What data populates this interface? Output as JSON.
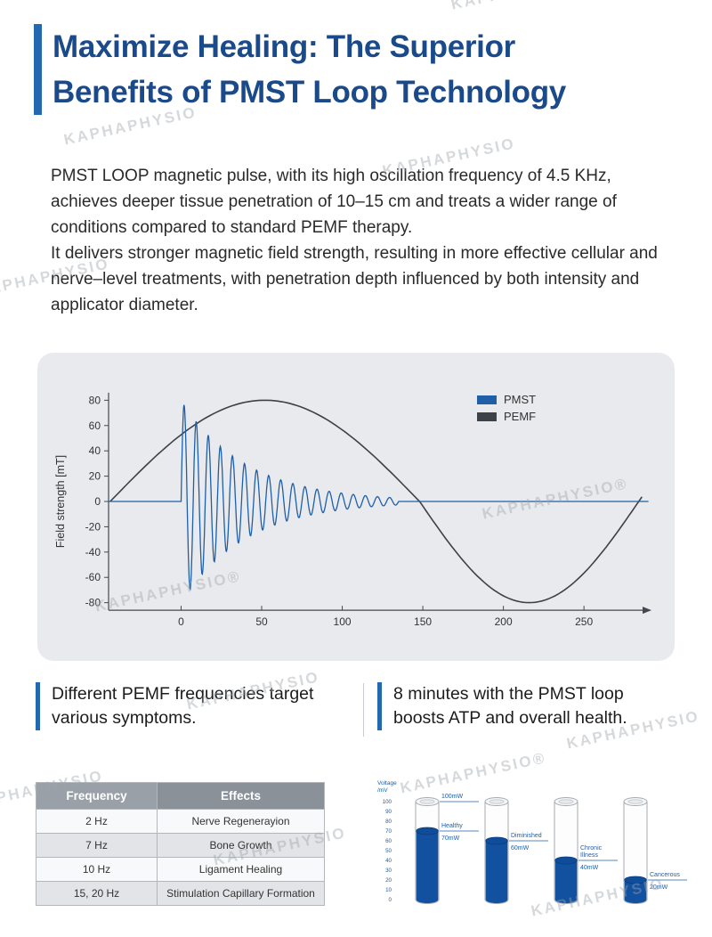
{
  "watermark": {
    "text": "KAPHAPHYSIO",
    "registered": "KAPHAPHYSIO®"
  },
  "header": {
    "title_line1": "Maximize Healing: The Superior",
    "title_line2": "Benefits of PMST Loop Technology"
  },
  "intro": {
    "p1": "PMST LOOP magnetic pulse, with its high oscillation frequency of 4.5 KHz, achieves deeper tissue penetration of 10–15 cm and treats a wider range of conditions compared to standard PEMF therapy.",
    "p2": "It delivers stronger magnetic field strength, resulting in more effective cellular and nerve–level treatments, with penetration depth influenced by both intensity and applicator diameter."
  },
  "chart_data": [
    {
      "type": "line",
      "title": "",
      "ylabel": "Field strength [mT]",
      "xlabel": "",
      "ylim": [
        -80,
        80
      ],
      "yticks": [
        80,
        60,
        40,
        20,
        0,
        -20,
        -40,
        -60,
        -80
      ],
      "xticks": [
        0,
        50,
        100,
        150,
        200,
        250
      ],
      "xlim": [
        -45,
        293
      ],
      "grid": false,
      "legend_position": "top-right",
      "series": [
        {
          "name": "PMST",
          "color": "#1e5fa8",
          "shape": "damped_oscillation",
          "amplitude": 80,
          "decay_tau": 40,
          "period": 7.5,
          "oscillation_range": [
            0,
            135
          ],
          "baseline": 0
        },
        {
          "name": "PEMF",
          "color": "#3d4248",
          "shape": "sine",
          "amplitude": 80,
          "segments": [
            {
              "from": -44,
              "to": 148,
              "half_period": 192,
              "sign": 1
            },
            {
              "from": 148,
              "to": 286,
              "half_period": 136,
              "sign": -1
            }
          ]
        }
      ]
    },
    {
      "type": "bar",
      "style": "battery-cylinders",
      "title": "",
      "ylabel": "Voltage /mV",
      "ylabel_lines": [
        "Voltage",
        "/mV"
      ],
      "ylim": [
        0,
        100
      ],
      "yticks": [
        100,
        90,
        80,
        70,
        60,
        50,
        40,
        30,
        20,
        10,
        0
      ],
      "categories": [
        "Healthy",
        "Diminished",
        "Chronic Illness",
        "Cancerous"
      ],
      "values": [
        70,
        60,
        40,
        20
      ],
      "value_labels": [
        "70mW",
        "60mW",
        "40mW",
        "20mW"
      ],
      "reference_line": {
        "value": 100,
        "label": "100mW"
      },
      "bar_color": "#11519f",
      "label_color": "#1a5fae"
    }
  ],
  "left_section": {
    "heading_line1": "Different PEMF frequencies target",
    "heading_line2": "various symptoms.",
    "table": {
      "headers": [
        "Frequency",
        "Effects"
      ],
      "rows": [
        [
          "2 Hz",
          "Nerve Regenerayion"
        ],
        [
          "7 Hz",
          "Bone Growth"
        ],
        [
          "10 Hz",
          "Ligament Healing"
        ],
        [
          "15, 20 Hz",
          "Stimulation Capillary Formation"
        ]
      ]
    }
  },
  "right_section": {
    "heading_line1": "8 minutes with the PMST loop",
    "heading_line2": "boosts ATP and overall health."
  },
  "colors": {
    "accent_blue": "#2368b0",
    "title_blue": "#1b4a8a",
    "chart_card_bg": "#e9eaed",
    "pmst_blue": "#1e5fa8",
    "pemf_dark": "#3d4248",
    "battery_fill": "#11519f"
  }
}
